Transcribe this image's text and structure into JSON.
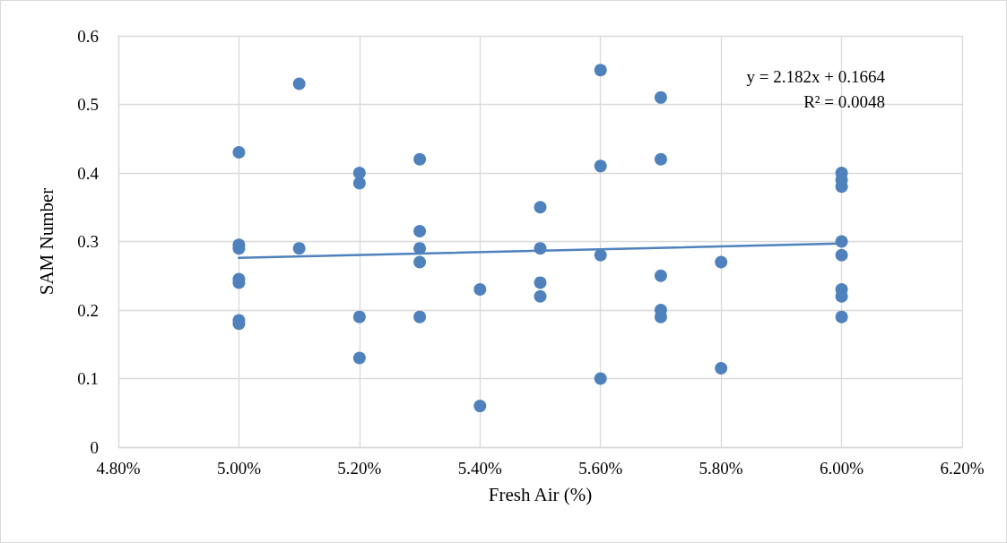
{
  "chart_data": {
    "type": "scatter",
    "xlabel": "Fresh Air (%)",
    "ylabel": "SAM Number",
    "annotations": [
      "y = 2.182x + 0.1664",
      "R² = 0.0048"
    ],
    "series": [
      {
        "color": "#4f81bd",
        "x": [
          0.05,
          0.05,
          0.05,
          0.05,
          0.05,
          0.05,
          0.05,
          0.051,
          0.051,
          0.052,
          0.052,
          0.052,
          0.052,
          0.053,
          0.053,
          0.053,
          0.053,
          0.053,
          0.054,
          0.054,
          0.055,
          0.055,
          0.055,
          0.055,
          0.056,
          0.056,
          0.056,
          0.056,
          0.057,
          0.057,
          0.057,
          0.057,
          0.057,
          0.058,
          0.058,
          0.06,
          0.06,
          0.06,
          0.06,
          0.06,
          0.06,
          0.06,
          0.06
        ],
        "values": [
          0.43,
          0.295,
          0.29,
          0.245,
          0.24,
          0.185,
          0.18,
          0.53,
          0.29,
          0.4,
          0.385,
          0.19,
          0.13,
          0.42,
          0.315,
          0.29,
          0.27,
          0.19,
          0.23,
          0.06,
          0.35,
          0.29,
          0.24,
          0.22,
          0.55,
          0.41,
          0.28,
          0.1,
          0.51,
          0.42,
          0.25,
          0.2,
          0.19,
          0.27,
          0.115,
          0.4,
          0.39,
          0.38,
          0.3,
          0.28,
          0.23,
          0.22,
          0.19
        ]
      },
      {
        "type": "line",
        "color": "#4f81bd",
        "marker": "none",
        "x": [
          0.05,
          0.06
        ],
        "values": [
          0.276,
          0.297
        ]
      }
    ],
    "xlim": [
      0.048,
      0.062
    ],
    "xticks": [
      {
        "value": 0.048,
        "label": "4.80%"
      },
      {
        "value": 0.05,
        "label": "5.00%"
      },
      {
        "value": 0.052,
        "label": "5.20%"
      },
      {
        "value": 0.054,
        "label": "5.40%"
      },
      {
        "value": 0.056,
        "label": "5.60%"
      },
      {
        "value": 0.058,
        "label": "5.80%"
      },
      {
        "value": 0.06,
        "label": "6.00%"
      },
      {
        "value": 0.062,
        "label": "6.20%"
      }
    ],
    "ylim": [
      0,
      0.6
    ],
    "yticks": [
      0,
      0.1,
      0.2,
      0.3,
      0.4,
      0.5,
      0.6
    ],
    "grid": true,
    "marker": "circle"
  }
}
